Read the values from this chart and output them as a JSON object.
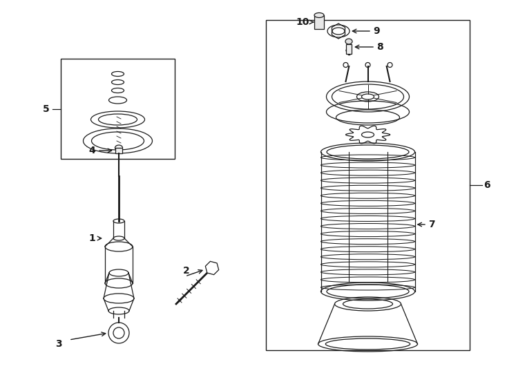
{
  "bg_color": "#ffffff",
  "line_color": "#1a1a1a",
  "lw": 0.9,
  "fig_width": 7.34,
  "fig_height": 5.4
}
